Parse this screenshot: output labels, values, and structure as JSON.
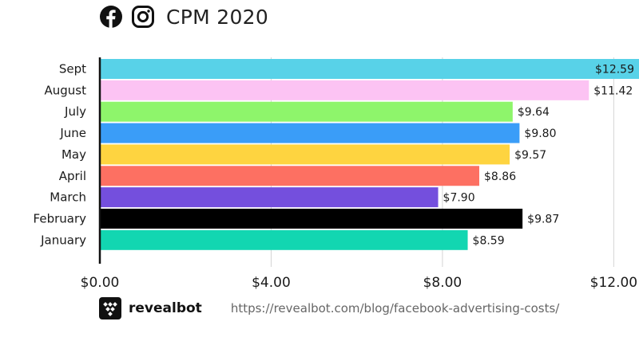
{
  "header": {
    "title": "CPM 2020",
    "icons": [
      "facebook-icon",
      "instagram-icon"
    ]
  },
  "footer": {
    "brand": "revealbot",
    "source_url": "https://revealbot.com/blog/facebook-advertising-costs/"
  },
  "chart_data": {
    "type": "bar",
    "orientation": "horizontal",
    "title": "CPM 2020",
    "categories": [
      "Sept",
      "August",
      "July",
      "June",
      "May",
      "April",
      "March",
      "February",
      "January"
    ],
    "values": [
      12.59,
      11.42,
      9.64,
      9.8,
      9.57,
      8.86,
      7.9,
      9.87,
      8.59
    ],
    "value_labels": [
      "$12.59",
      "$11.42",
      "$9.64",
      "$9.80",
      "$9.57",
      "$8.86",
      "$7.90",
      "$9.87",
      "$8.59"
    ],
    "colors": [
      "#58d2e8",
      "#fcc3f3",
      "#8ef56b",
      "#3a9df8",
      "#fed440",
      "#fd7062",
      "#744fdd",
      "#000000",
      "#12d6b1"
    ],
    "xlim": [
      0,
      12.59
    ],
    "xticks": [
      0,
      4,
      8,
      12
    ],
    "xtick_labels": [
      "$0.00",
      "$4.00",
      "$8.00",
      "$12.00"
    ],
    "grid": true
  }
}
